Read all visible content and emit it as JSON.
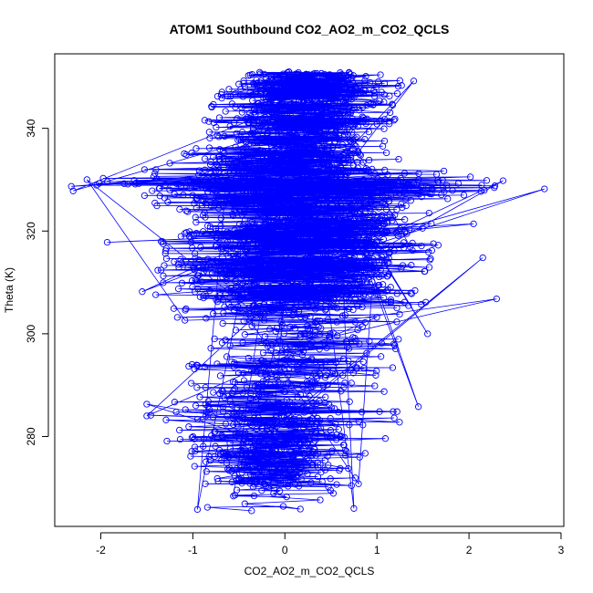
{
  "chart_data": {
    "type": "scatter",
    "title": "ATOM1 Southbound CO2_AO2_m_CO2_QCLS",
    "xlabel": "CO2_AO2_m_CO2_QCLS",
    "ylabel": "Theta (K)",
    "xlim": [
      -2.5,
      3.03
    ],
    "ylim": [
      262.5,
      354.5
    ],
    "xticks": [
      -2,
      -1,
      0,
      1,
      2,
      3
    ],
    "yticks": [
      280,
      300,
      320,
      340
    ],
    "xtick_labels": [
      "-2",
      "-1",
      "0",
      "1",
      "2",
      "3"
    ],
    "ytick_labels": [
      "280",
      "300",
      "320",
      "340"
    ],
    "grid": false,
    "legend": "none",
    "marker": "open-circle",
    "connected": true,
    "series_color": "#0000ff",
    "y_range": [
      265.5,
      351
    ],
    "envelope": [
      [
        266,
        -0.95,
        0.75
      ],
      [
        270,
        -0.85,
        0.8
      ],
      [
        274,
        -1.0,
        0.75
      ],
      [
        278,
        -1.3,
        1.05
      ],
      [
        282,
        -1.4,
        1.25
      ],
      [
        286,
        -1.6,
        1.25
      ],
      [
        290,
        -1.1,
        1.05
      ],
      [
        294,
        -1.1,
        1.3
      ],
      [
        298,
        -1.0,
        1.2
      ],
      [
        302,
        -1.1,
        1.4
      ],
      [
        306,
        -1.4,
        1.8
      ],
      [
        310,
        -1.5,
        1.6
      ],
      [
        314,
        -1.3,
        1.6
      ],
      [
        318,
        -1.4,
        1.7
      ],
      [
        322,
        -1.1,
        1.6
      ],
      [
        326,
        -1.5,
        1.8
      ],
      [
        329,
        -2.3,
        2.5
      ],
      [
        333,
        -1.3,
        1.4
      ],
      [
        337,
        -0.9,
        1.1
      ],
      [
        341,
        -0.9,
        1.2
      ],
      [
        345,
        -0.8,
        1.2
      ],
      [
        349,
        -0.6,
        1.3
      ],
      [
        351,
        -0.45,
        1.0
      ]
    ],
    "notable_points": [
      {
        "x": 2.82,
        "y": 328.2
      },
      {
        "x": 2.37,
        "y": 329.8
      },
      {
        "x": -2.32,
        "y": 328.7
      },
      {
        "x": -2.3,
        "y": 327.8
      },
      {
        "x": -2.15,
        "y": 330.0
      },
      {
        "x": -1.93,
        "y": 317.8
      },
      {
        "x": 2.3,
        "y": 306.8
      },
      {
        "x": 2.15,
        "y": 314.8
      },
      {
        "x": 2.05,
        "y": 321.4
      },
      {
        "x": -1.55,
        "y": 308.2
      },
      {
        "x": 1.55,
        "y": 300.0
      },
      {
        "x": -1.5,
        "y": 286.3
      },
      {
        "x": -1.5,
        "y": 284.0
      },
      {
        "x": 1.4,
        "y": 349.2
      },
      {
        "x": 1.45,
        "y": 285.8
      },
      {
        "x": -0.95,
        "y": 265.8
      },
      {
        "x": 0.75,
        "y": 266.0
      },
      {
        "x": 0.8,
        "y": 270.8
      }
    ]
  }
}
